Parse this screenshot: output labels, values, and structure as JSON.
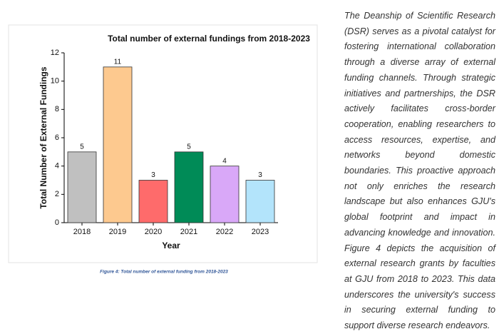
{
  "chart_data": {
    "type": "bar",
    "title": "Total number of external fundings from 2018-2023",
    "x_label": "Year",
    "y_label": "Total Number of External Fundings",
    "categories": [
      "2018",
      "2019",
      "2020",
      "2021",
      "2022",
      "2023"
    ],
    "values": [
      5,
      11,
      3,
      5,
      4,
      3
    ],
    "colors": [
      "#c0c0c0",
      "#fdc98f",
      "#fe6b6b",
      "#008b57",
      "#d9a8f8",
      "#b3e4fb"
    ],
    "ylim": [
      0,
      12
    ],
    "yticks": [
      0,
      2,
      4,
      6,
      8,
      10,
      12
    ],
    "grid": false
  },
  "caption": "Figure 4: Total number of external funding from 2018-2023",
  "paragraph": "The Deanship of Scientific Research (DSR) serves as a pivotal catalyst for fostering international collaboration through a diverse array of external funding channels. Through strategic initiatives and partnerships, the DSR actively facilitates cross-border cooperation, enabling researchers to access resources, expertise, and networks beyond domestic boundaries. This proactive approach not only enriches the research landscape but also enhances GJU's global footprint and impact in advancing knowledge and innovation. Figure 4 depicts the acquisition of external research grants by faculties at GJU from 2018 to 2023. This data underscores the university's success in securing external funding to support diverse research endeavors."
}
